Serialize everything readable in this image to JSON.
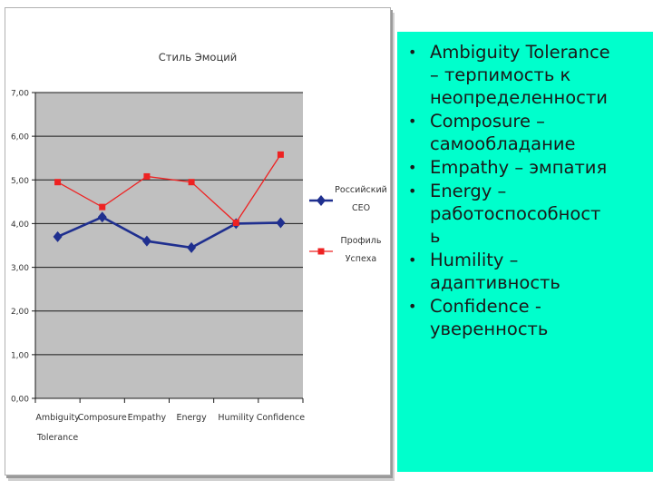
{
  "chart_data": {
    "type": "line",
    "title": "Стиль Эмоций",
    "categories": [
      "Ambiguity\nTolerance",
      "Composure",
      "Empathy",
      "Energy",
      "Humility",
      "Confidence"
    ],
    "y_ticks": [
      "0,00",
      "1,00",
      "2,00",
      "3,00",
      "4,00",
      "5,00",
      "6,00",
      "7,00"
    ],
    "ylim": [
      0,
      7
    ],
    "grid": true,
    "plot_background": "#c0c0c0",
    "legend_position": "right",
    "series": [
      {
        "name": "Российский\nCEO",
        "color": "#1f2f8f",
        "marker": "diamond",
        "values": [
          3.7,
          4.15,
          3.6,
          3.45,
          4.0,
          4.02
        ]
      },
      {
        "name": "Профиль\nУспеха",
        "color": "#ee2222",
        "marker": "square",
        "values": [
          4.95,
          4.38,
          5.08,
          4.95,
          4.02,
          5.58
        ]
      }
    ]
  },
  "bullets": [
    "Ambiguity Tolerance\n– терпимость к\nнеопределенности",
    "Composure –\nсамообладание",
    "Empathy – эмпатия",
    "Energy –\nработоспособност\nь",
    "Humility –\nадаптивность",
    "Confidence -\nуверенность"
  ],
  "bullet_symbol": "•"
}
